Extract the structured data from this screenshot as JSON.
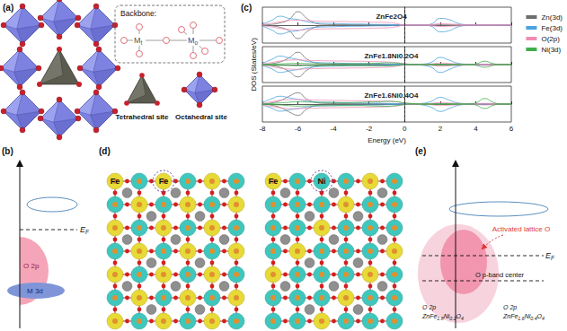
{
  "panels": {
    "a": {
      "label": "(a)",
      "backbone_title": "Backbone:",
      "tetra_metal": {
        "main": "M",
        "sub": "t"
      },
      "octa_metal": {
        "main": "M",
        "sub": "o"
      },
      "sites": [
        "Tetrahedral site",
        "Octahedral site"
      ]
    },
    "b": {
      "label": "(b)",
      "fermi": {
        "main": "E",
        "sub": "F"
      },
      "bands": [
        "O 2p",
        "M 3d"
      ]
    },
    "c": {
      "label": "(c)"
    },
    "d": {
      "label": "(d)",
      "slabs": [
        {
          "plain": "Fe",
          "circled": "Fe"
        },
        {
          "plain": "Fe",
          "circled": "Ni"
        }
      ]
    },
    "e": {
      "label": "(e)",
      "annotation": "Activated lattice O",
      "fermi": {
        "main": "E",
        "sub": "F"
      },
      "band_center": "O p-band center",
      "bands": [
        {
          "band": "O 2p",
          "material": "ZnFe1.8Ni0.2O4"
        },
        {
          "band": "O 2p",
          "material": "ZnFe1.6Ni0.4O4"
        }
      ]
    }
  },
  "chart_data": [
    {
      "type": "line",
      "title": "ZnFe2O4",
      "legend": "right",
      "tick_labels": false,
      "fermi_level": 0,
      "x": [
        -8,
        -7.5,
        -7,
        -6.5,
        -6,
        -5.5,
        -5,
        -4.5,
        -4,
        -3.5,
        -3,
        -2.5,
        -2,
        -1.5,
        -1,
        -0.5,
        0,
        0.5,
        1,
        1.5,
        2,
        2.5,
        3,
        3.5,
        4,
        4.5,
        5,
        5.5,
        6
      ],
      "xlim": [
        -8,
        6
      ],
      "xticks": [
        -8,
        -6,
        -4,
        -2,
        0,
        2,
        4,
        6
      ],
      "ylim": [
        -8,
        8
      ],
      "series": [
        {
          "name": "Zn(3d)",
          "color": "#6e6e6e",
          "values": [
            0,
            0.3,
            1,
            2.5,
            6,
            3,
            0.8,
            0.3,
            0.2,
            0.2,
            0.2,
            0.2,
            0.2,
            0.2,
            0.1,
            0.05,
            0,
            0,
            0,
            0,
            0.1,
            0.1,
            0,
            0,
            0,
            0,
            0,
            0,
            0
          ],
          "values_down": [
            0,
            -0.3,
            -1,
            -2.5,
            -6,
            -3,
            -0.8,
            -0.3,
            -0.2,
            -0.2,
            -0.2,
            -0.2,
            -0.2,
            -0.2,
            -0.1,
            -0.05,
            0,
            0,
            0,
            0,
            -0.1,
            -0.1,
            0,
            0,
            0,
            0,
            0,
            0,
            0
          ]
        },
        {
          "name": "Fe(3d)",
          "color": "#4aa3df",
          "values": [
            0.5,
            2,
            4,
            3,
            2.5,
            1.5,
            1,
            0.8,
            0.7,
            0.6,
            0.5,
            0.5,
            0.4,
            0.3,
            0.3,
            0.1,
            0,
            0,
            0,
            0.5,
            3,
            2.5,
            0.8,
            0.2,
            0.1,
            0,
            0,
            0,
            0
          ],
          "values_down": [
            -0.5,
            -2,
            -4,
            -3,
            -2.5,
            -1.5,
            -1,
            -0.8,
            -0.7,
            -0.6,
            -0.5,
            -0.5,
            -0.4,
            -0.3,
            -0.3,
            -0.1,
            0,
            0,
            0,
            -0.5,
            -3,
            -2.5,
            -0.8,
            -0.2,
            -0.1,
            0,
            0,
            0,
            0
          ]
        },
        {
          "name": "O(2p)",
          "color": "#f08cb4",
          "values": [
            0.3,
            0.8,
            1.5,
            2,
            2.2,
            2,
            1.8,
            1.7,
            1.6,
            1.6,
            1.5,
            1.5,
            1.4,
            1.3,
            1.2,
            0.8,
            0,
            0,
            0,
            0.2,
            0.6,
            0.5,
            0.3,
            0.1,
            0.1,
            0.1,
            0.1,
            0,
            0
          ],
          "values_down": [
            -0.3,
            -0.8,
            -1.5,
            -2,
            -2.2,
            -2,
            -1.8,
            -1.7,
            -1.6,
            -1.6,
            -1.5,
            -1.5,
            -1.4,
            -1.3,
            -1.2,
            -0.8,
            0,
            0,
            0,
            -0.2,
            -0.6,
            -0.5,
            -0.3,
            -0.1,
            -0.1,
            -0.1,
            -0.1,
            0,
            0
          ]
        }
      ]
    },
    {
      "type": "line",
      "title": "ZnFe1.8Ni0.2O4",
      "ylabel": "DOS (States/eV)",
      "tick_labels": false,
      "fermi_level": 0,
      "x": [
        -8,
        -7.5,
        -7,
        -6.5,
        -6,
        -5.5,
        -5,
        -4.5,
        -4,
        -3.5,
        -3,
        -2.5,
        -2,
        -1.5,
        -1,
        -0.5,
        0,
        0.5,
        1,
        1.5,
        2,
        2.5,
        3,
        3.5,
        4,
        4.5,
        5,
        5.5,
        6
      ],
      "xlim": [
        -8,
        6
      ],
      "xticks": [
        -8,
        -6,
        -4,
        -2,
        0,
        2,
        4,
        6
      ],
      "ylim": [
        -8,
        8
      ],
      "series": [
        {
          "name": "Zn(3d)",
          "color": "#6e6e6e",
          "values": [
            0,
            0.4,
            1.2,
            3,
            5.5,
            2.5,
            0.7,
            0.3,
            0.2,
            0.2,
            0.2,
            0.2,
            0.2,
            0.2,
            0.1,
            0.05,
            0,
            0,
            0,
            0,
            0.1,
            0.1,
            0,
            0,
            0,
            0,
            0,
            0,
            0
          ],
          "values_down": [
            0,
            -0.4,
            -1.2,
            -3,
            -5.5,
            -2.5,
            -0.7,
            -0.3,
            -0.2,
            -0.2,
            -0.2,
            -0.2,
            -0.2,
            -0.2,
            -0.1,
            -0.05,
            0,
            0,
            0,
            0,
            -0.1,
            -0.1,
            0,
            0,
            0,
            0,
            0,
            0,
            0
          ]
        },
        {
          "name": "Fe(3d)",
          "color": "#4aa3df",
          "values": [
            0.6,
            2.2,
            3.8,
            3,
            2.3,
            1.4,
            1,
            0.8,
            0.7,
            0.6,
            0.5,
            0.5,
            0.4,
            0.4,
            0.3,
            0.2,
            0.1,
            0,
            0.2,
            1,
            3.2,
            2,
            0.6,
            0.2,
            0.1,
            0,
            0,
            0,
            0
          ],
          "values_down": [
            -0.5,
            -1.8,
            -3.5,
            -2.8,
            -2.2,
            -1.4,
            -1,
            -0.8,
            -0.7,
            -0.6,
            -0.5,
            -0.5,
            -0.4,
            -0.4,
            -0.3,
            -0.2,
            -0.1,
            0,
            -0.3,
            -1.2,
            -3.5,
            -2.2,
            -0.7,
            -0.2,
            -0.1,
            0,
            0,
            0,
            0
          ]
        },
        {
          "name": "O(2p)",
          "color": "#f08cb4",
          "values": [
            0.3,
            0.9,
            1.6,
            2,
            2.1,
            1.9,
            1.8,
            1.7,
            1.6,
            1.6,
            1.5,
            1.5,
            1.4,
            1.3,
            1.2,
            0.9,
            0.4,
            0.1,
            0.1,
            0.3,
            0.7,
            0.5,
            0.3,
            0.1,
            0.1,
            0.2,
            0.1,
            0,
            0
          ],
          "values_down": [
            -0.3,
            -0.9,
            -1.6,
            -2,
            -2.1,
            -1.9,
            -1.8,
            -1.7,
            -1.6,
            -1.6,
            -1.5,
            -1.5,
            -1.4,
            -1.3,
            -1.2,
            -0.8,
            -0.2,
            0,
            -0.1,
            -0.3,
            -0.7,
            -0.5,
            -0.3,
            -0.1,
            -0.1,
            -0.3,
            -0.1,
            0,
            0
          ]
        },
        {
          "name": "Ni(3d)",
          "color": "#3fae49",
          "values": [
            0,
            0.1,
            0.3,
            0.5,
            0.6,
            0.5,
            0.4,
            0.4,
            0.4,
            0.4,
            0.4,
            0.4,
            0.5,
            0.6,
            0.8,
            0.7,
            0.3,
            0.1,
            0,
            0,
            0,
            0,
            0,
            0,
            0.3,
            1.5,
            0.4,
            0,
            0
          ],
          "values_down": [
            0,
            -0.1,
            -0.3,
            -0.4,
            -0.5,
            -0.4,
            -0.4,
            -0.4,
            -0.4,
            -0.4,
            -0.4,
            -0.4,
            -0.5,
            -0.5,
            -0.6,
            -0.4,
            -0.1,
            0,
            0,
            0,
            0,
            0,
            0,
            0,
            -0.3,
            -1.2,
            -0.3,
            0,
            0
          ]
        }
      ]
    },
    {
      "type": "line",
      "title": "ZnFe1.6Ni0.4O4",
      "xlabel": "Energy (eV)",
      "tick_labels": "x",
      "fermi_level": 0,
      "x": [
        -8,
        -7.5,
        -7,
        -6.5,
        -6,
        -5.5,
        -5,
        -4.5,
        -4,
        -3.5,
        -3,
        -2.5,
        -2,
        -1.5,
        -1,
        -0.5,
        0,
        0.5,
        1,
        1.5,
        2,
        2.5,
        3,
        3.5,
        4,
        4.5,
        5,
        5.5,
        6
      ],
      "xlim": [
        -8,
        6
      ],
      "xticks": [
        -8,
        -6,
        -4,
        -2,
        0,
        2,
        4,
        6
      ],
      "ylim": [
        -8,
        8
      ],
      "series": [
        {
          "name": "Zn(3d)",
          "color": "#6e6e6e",
          "values": [
            0,
            0.5,
            1.5,
            3.5,
            5,
            2.2,
            0.7,
            0.3,
            0.2,
            0.2,
            0.2,
            0.2,
            0.2,
            0.2,
            0.1,
            0.05,
            0,
            0,
            0,
            0,
            0.1,
            0.1,
            0,
            0,
            0,
            0,
            0,
            0,
            0
          ],
          "values_down": [
            0,
            -0.5,
            -1.5,
            -3.5,
            -5,
            -2.2,
            -0.7,
            -0.3,
            -0.2,
            -0.2,
            -0.2,
            -0.2,
            -0.2,
            -0.2,
            -0.1,
            -0.05,
            0,
            0,
            0,
            0,
            -0.1,
            -0.1,
            0,
            0,
            0,
            0,
            0,
            0,
            0
          ]
        },
        {
          "name": "Fe(3d)",
          "color": "#4aa3df",
          "values": [
            0.6,
            2.3,
            3.5,
            2.8,
            2.1,
            1.3,
            0.9,
            0.8,
            0.7,
            0.6,
            0.5,
            0.5,
            0.4,
            0.4,
            0.3,
            0.2,
            0.1,
            0.1,
            0.3,
            1.2,
            3,
            1.8,
            0.5,
            0.2,
            0.1,
            0,
            0,
            0,
            0
          ],
          "values_down": [
            -0.5,
            -1.7,
            -3.2,
            -2.6,
            -2,
            -1.3,
            -0.9,
            -0.8,
            -0.7,
            -0.6,
            -0.5,
            -0.5,
            -0.4,
            -0.4,
            -0.3,
            -0.2,
            -0.1,
            -0.1,
            -0.4,
            -1.4,
            -3.3,
            -2,
            -0.6,
            -0.2,
            -0.1,
            0,
            0,
            0,
            0
          ]
        },
        {
          "name": "O(2p)",
          "color": "#f08cb4",
          "values": [
            0.3,
            1,
            1.7,
            2,
            2,
            1.9,
            1.8,
            1.7,
            1.6,
            1.6,
            1.5,
            1.5,
            1.4,
            1.3,
            1.3,
            1,
            0.5,
            0.2,
            0.1,
            0.3,
            0.7,
            0.5,
            0.3,
            0.1,
            0.2,
            0.3,
            0.2,
            0,
            0
          ],
          "values_down": [
            -0.3,
            -1,
            -1.7,
            -2,
            -2,
            -1.9,
            -1.8,
            -1.7,
            -1.6,
            -1.6,
            -1.5,
            -1.5,
            -1.4,
            -1.3,
            -1.2,
            -0.9,
            -0.3,
            -0.1,
            -0.1,
            -0.3,
            -0.7,
            -0.5,
            -0.3,
            -0.1,
            -0.2,
            -0.4,
            -0.2,
            0,
            0
          ]
        },
        {
          "name": "Ni(3d)",
          "color": "#3fae49",
          "values": [
            0,
            0.2,
            0.5,
            0.8,
            1,
            0.9,
            0.8,
            0.7,
            0.7,
            0.7,
            0.7,
            0.8,
            0.9,
            1,
            1.2,
            1.1,
            0.5,
            0.2,
            0,
            0,
            0,
            0,
            0,
            0,
            0.5,
            2.5,
            0.7,
            0,
            0
          ],
          "values_down": [
            0,
            -0.2,
            -0.4,
            -0.7,
            -0.9,
            -0.8,
            -0.7,
            -0.7,
            -0.7,
            -0.7,
            -0.7,
            -0.7,
            -0.8,
            -0.9,
            -1,
            -0.7,
            -0.2,
            0,
            0,
            0,
            0,
            0,
            0,
            0,
            -0.4,
            -2,
            -0.5,
            0,
            0
          ]
        }
      ]
    }
  ]
}
